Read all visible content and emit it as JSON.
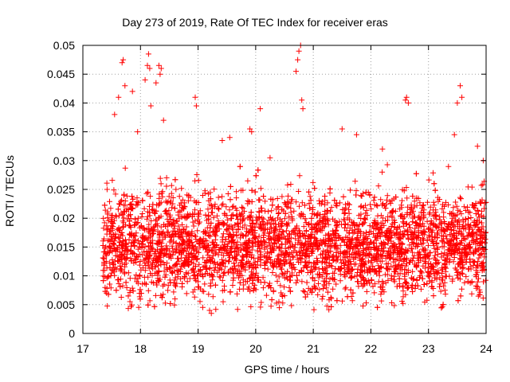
{
  "chart_data": {
    "type": "scatter",
    "title": "Day 273 of 2019, Rate Of TEC Index for receiver eras",
    "xlabel": "GPS time / hours",
    "ylabel": "ROTI / TECUs",
    "xlim": [
      17,
      24
    ],
    "ylim": [
      0,
      0.05
    ],
    "grid": true,
    "marker": "+",
    "marker_color": "#ff0000",
    "x_ticks": [
      "17",
      "18",
      "19",
      "20",
      "21",
      "22",
      "23",
      "24"
    ],
    "y_ticks": [
      "0",
      "0.005",
      "0.01",
      "0.015",
      "0.02",
      "0.025",
      "0.03",
      "0.035",
      "0.04",
      "0.045",
      "0.05"
    ],
    "series": [
      {
        "name": "ROTI",
        "x": [
          17.42,
          17.55,
          17.62,
          17.68,
          17.7,
          17.73,
          17.86,
          17.95,
          18.08,
          18.12,
          18.14,
          18.16,
          18.18,
          18.27,
          18.32,
          18.34,
          18.36,
          18.4,
          18.95,
          18.97,
          19.2,
          19.23,
          19.42,
          19.55,
          19.9,
          19.93,
          20.08,
          20.25,
          20.7,
          20.73,
          20.75,
          20.78,
          20.8,
          20.82,
          21.5,
          21.75,
          22.2,
          22.6,
          22.62,
          22.65,
          23.45,
          23.5,
          23.55,
          23.58,
          23.85,
          23.95
        ],
        "y": [
          0.025,
          0.038,
          0.041,
          0.047,
          0.0475,
          0.043,
          0.042,
          0.035,
          0.044,
          0.0465,
          0.0485,
          0.046,
          0.0395,
          0.0435,
          0.0465,
          0.045,
          0.046,
          0.037,
          0.041,
          0.0395,
          0.004,
          0.0035,
          0.0335,
          0.034,
          0.0355,
          0.035,
          0.039,
          0.0305,
          0.0455,
          0.0475,
          0.049,
          0.05,
          0.0405,
          0.039,
          0.0355,
          0.0345,
          0.032,
          0.0405,
          0.041,
          0.04,
          0.0345,
          0.04,
          0.043,
          0.041,
          0.0325,
          0.03
        ],
        "note": "Dense cloud of several thousand points spanning 17.35–24 h, mostly between 0.005 and 0.030 TECU; the listed points are the distinct outliers. The dense band is generated from the band statistics below.",
        "band": {
          "x_start": 17.35,
          "x_end": 24.0,
          "count": 4200,
          "center": 0.0155,
          "spread": 0.0045,
          "min": 0.004,
          "max": 0.034
        }
      }
    ]
  }
}
